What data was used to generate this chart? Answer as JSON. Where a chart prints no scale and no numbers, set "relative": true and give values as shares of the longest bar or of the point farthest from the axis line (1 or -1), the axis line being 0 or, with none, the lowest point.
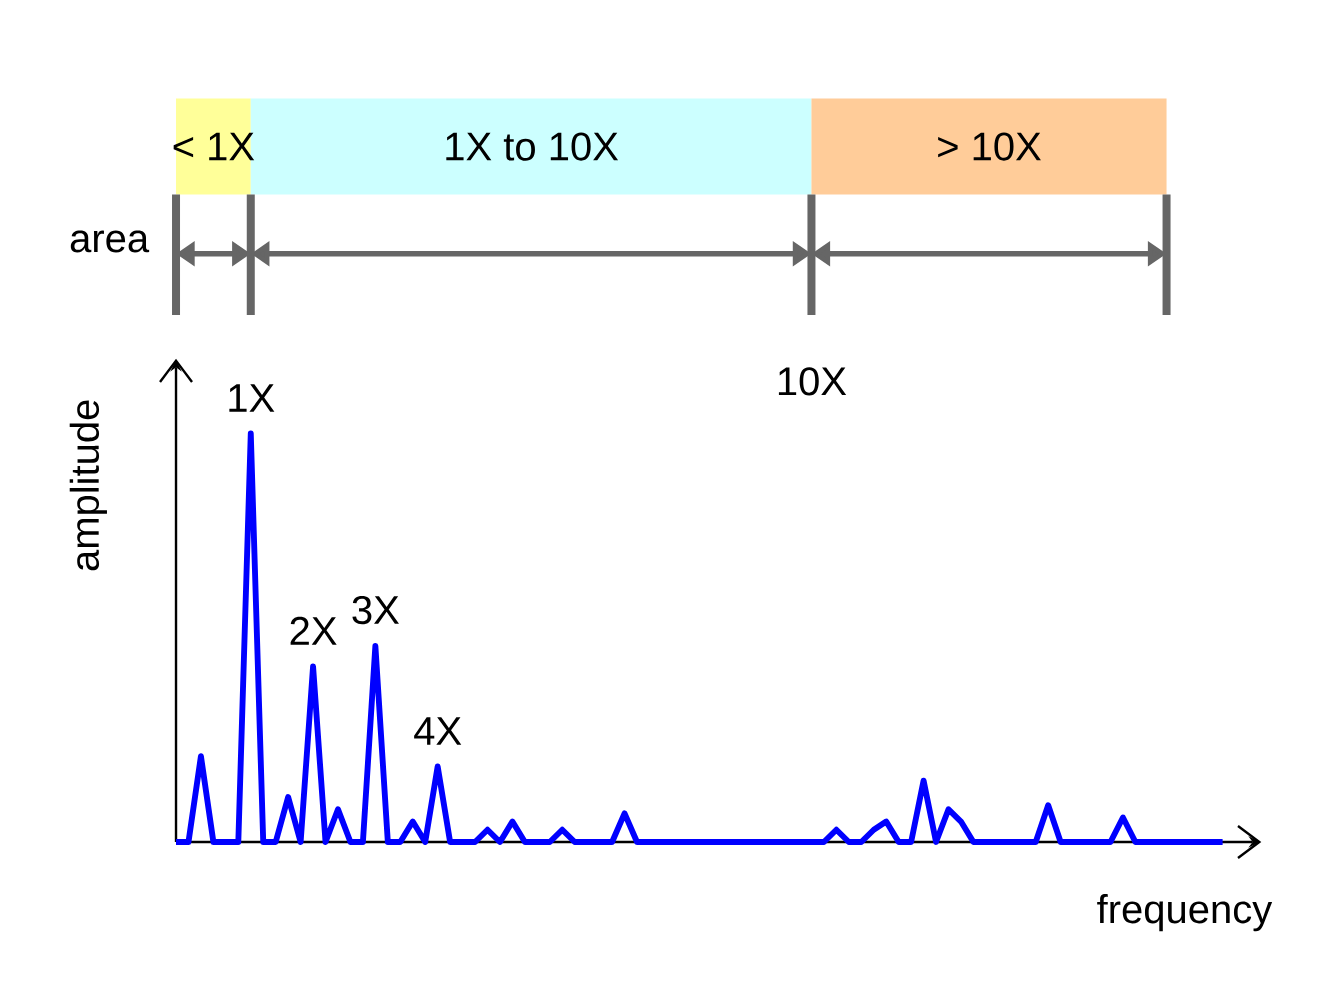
{
  "chart_data": {
    "type": "line",
    "xlabel": "frequency",
    "ylabel": "amplitude",
    "relative": true,
    "tick_labels": false,
    "categories": [
      null,
      null,
      null,
      null,
      null,
      null,
      null,
      null,
      null,
      null,
      null,
      null,
      null,
      null,
      null,
      null,
      null,
      null,
      null,
      null,
      null,
      null,
      null,
      null,
      null,
      null,
      null,
      null,
      null,
      null,
      null,
      null,
      null,
      null,
      null,
      null,
      null,
      null,
      null,
      null,
      null,
      null,
      null,
      null,
      null,
      null,
      null,
      null,
      null,
      null,
      null,
      null,
      null,
      null,
      null,
      null,
      null,
      null,
      null,
      null,
      null,
      null,
      null,
      null,
      null,
      null,
      null,
      null,
      null,
      null,
      null,
      null,
      null,
      null,
      null,
      null,
      null,
      null,
      null,
      null,
      null,
      null,
      null,
      null,
      null
    ],
    "series": [
      {
        "color": "#0000ff",
        "values": [
          0,
          0,
          0.21,
          0,
          0,
          0,
          1,
          0,
          0,
          0.11,
          0,
          0.43,
          0,
          0.08,
          0,
          0,
          0.48,
          0,
          0,
          0.05,
          0,
          0.185,
          0,
          0,
          0,
          0.03,
          0,
          0.05,
          0,
          0,
          0,
          0.03,
          0,
          0,
          0,
          0,
          0.07,
          0,
          0,
          0,
          0,
          0,
          0,
          0,
          0,
          0,
          0,
          0,
          0,
          0,
          0,
          0,
          0,
          0.03,
          0,
          0,
          0.03,
          0.05,
          0,
          0,
          0.15,
          0,
          0.08,
          0.05,
          0,
          0,
          0,
          0,
          0,
          0,
          0.09,
          0,
          0,
          0,
          0,
          0,
          0.06,
          0,
          0,
          0,
          0,
          0,
          0,
          0,
          0
        ]
      }
    ],
    "annotations": [
      "< 1X",
      "1X to 10X",
      "> 10X",
      "area",
      "1X",
      "2X",
      "3X",
      "4X",
      "10X"
    ]
  }
}
